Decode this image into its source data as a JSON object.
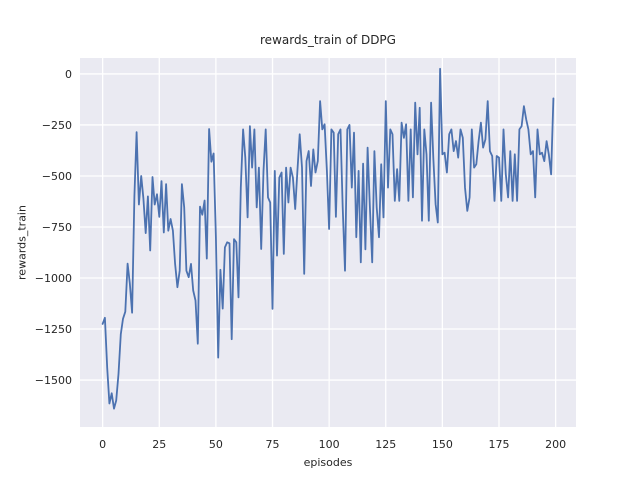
{
  "figure": {
    "title": "rewards_train of DDPG",
    "xlabel": "episodes",
    "ylabel": "rewards_train"
  },
  "chart_data": {
    "type": "line",
    "title": "rewards_train of DDPG",
    "xlabel": "episodes",
    "ylabel": "rewards_train",
    "grid": true,
    "legend": false,
    "xlim": [
      -10,
      209
    ],
    "ylim": [
      -1730,
      78
    ],
    "x_ticks": [
      0,
      25,
      50,
      75,
      100,
      125,
      150,
      175,
      200
    ],
    "x_tick_labels": [
      "0",
      "25",
      "50",
      "75",
      "100",
      "125",
      "150",
      "175",
      "200"
    ],
    "y_ticks": [
      0,
      -250,
      -500,
      -750,
      -1000,
      -1250,
      -1500
    ],
    "y_tick_labels": [
      "0",
      "−250",
      "−500",
      "−750",
      "−1000",
      "−1250",
      "−1500"
    ],
    "colors": {
      "figure_bg": "#ffffff",
      "axes_bg": "#eaeaf2",
      "grid": "#ffffff",
      "line": "#4c72b0",
      "text": "#262626"
    },
    "series": [
      {
        "name": "rewards_train",
        "color": "#4c72b0",
        "x_start": 0,
        "x_step": 1,
        "values": [
          -1225,
          -1195,
          -1440,
          -1615,
          -1565,
          -1640,
          -1600,
          -1470,
          -1275,
          -1200,
          -1165,
          -930,
          -1025,
          -1170,
          -600,
          -285,
          -640,
          -500,
          -610,
          -780,
          -600,
          -865,
          -505,
          -640,
          -590,
          -700,
          -525,
          -777,
          -540,
          -768,
          -711,
          -768,
          -931,
          -1045,
          -964,
          -540,
          -654,
          -964,
          -996,
          -931,
          -1061,
          -1110,
          -1322,
          -650,
          -690,
          -620,
          -905,
          -270,
          -430,
          -390,
          -800,
          -1390,
          -960,
          -1150,
          -850,
          -825,
          -830,
          -1300,
          -810,
          -825,
          -1095,
          -557,
          -272,
          -410,
          -703,
          -256,
          -459,
          -272,
          -654,
          -459,
          -858,
          -475,
          -272,
          -605,
          -630,
          -1151,
          -475,
          -890,
          -508,
          -483,
          -882,
          -459,
          -630,
          -459,
          -508,
          -662,
          -475,
          -296,
          -459,
          -980,
          -427,
          -378,
          -549,
          -370,
          -483,
          -427,
          -133,
          -272,
          -247,
          -475,
          -760,
          -272,
          -288,
          -700,
          -296,
          -272,
          -654,
          -964,
          -272,
          -250,
          -557,
          -288,
          -800,
          -475,
          -923,
          -440,
          -860,
          -361,
          -654,
          -923,
          -378,
          -654,
          -800,
          -443,
          -703,
          -133,
          -557,
          -272,
          -296,
          -622,
          -467,
          -622,
          -239,
          -313,
          -247,
          -622,
          -272,
          -605,
          -141,
          -394,
          -166,
          -719,
          -272,
          -394,
          -719,
          -141,
          -410,
          -638,
          -728,
          25,
          -394,
          -386,
          -483,
          -296,
          -272,
          -378,
          -329,
          -410,
          -272,
          -313,
          -557,
          -671,
          -605,
          -272,
          -459,
          -443,
          -329,
          -239,
          -361,
          -321,
          -133,
          -378,
          -402,
          -622,
          -402,
          -410,
          -622,
          -272,
          -492,
          -605,
          -378,
          -622,
          -394,
          -622,
          -272,
          -256,
          -158,
          -223,
          -272,
          -394,
          -378,
          -605,
          -272,
          -394,
          -386,
          -427,
          -329,
          -394,
          -492,
          -120
        ]
      }
    ]
  }
}
